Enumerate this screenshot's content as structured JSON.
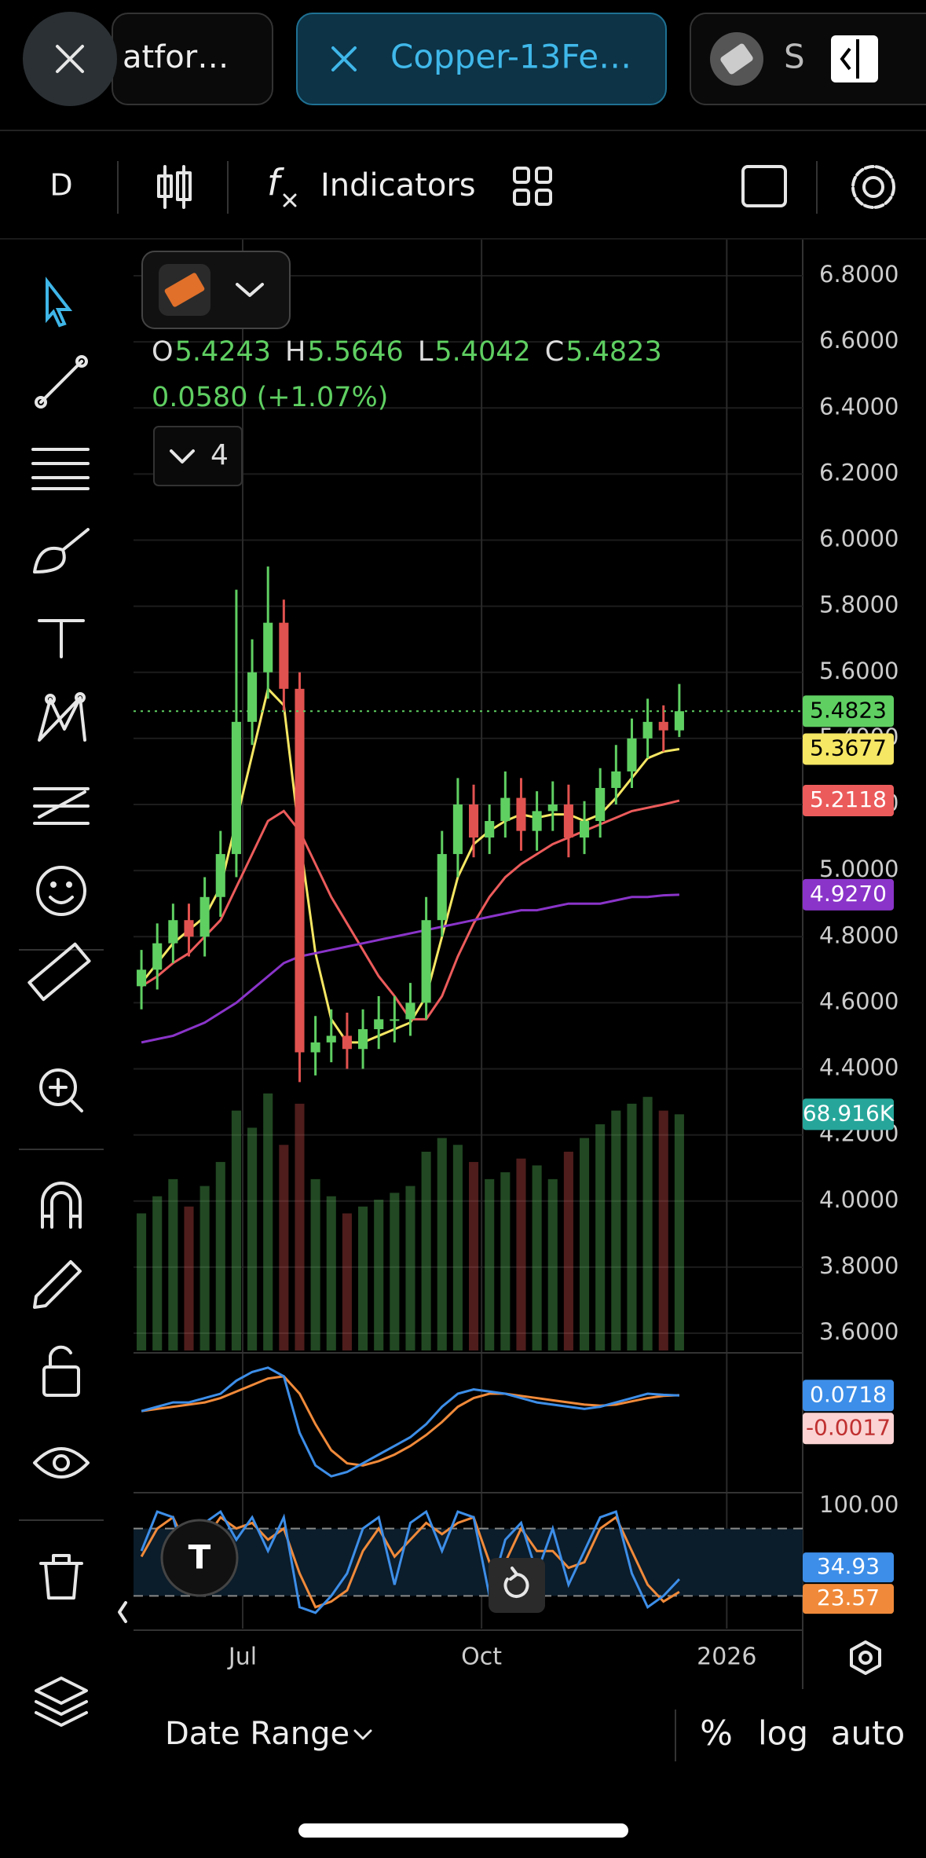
{
  "tabs": [
    "atfor…",
    "Copper-13Fe…",
    "S"
  ],
  "toolbar": {
    "interval": "D",
    "indicators": "Indicators"
  },
  "legend": {
    "o": "O",
    "h": "H",
    "l": "L",
    "c": "C",
    "change": "0.0580 (+1.07%)",
    "count": 4
  },
  "footer": {
    "date_range": "Date Range",
    "percent": "%",
    "log": "log",
    "auto": "auto"
  },
  "chart_data": {
    "type": "candlestick",
    "up_color": "#5fcf62",
    "down_color": "#e0524f",
    "xlim": [
      -0.5,
      41.8
    ],
    "xticks": [
      {
        "value": 6.4,
        "label": "Jul"
      },
      {
        "value": 21.5,
        "label": "Oct"
      },
      {
        "value": 37,
        "label": "2026"
      }
    ],
    "ylim": [
      3.6,
      6.8
    ],
    "yticks": [
      {
        "value": 6.8,
        "label": "6.8000"
      },
      {
        "value": 6.6,
        "label": "6.6000"
      },
      {
        "value": 6.4,
        "label": "6.4000"
      },
      {
        "value": 6.2,
        "label": "6.2000"
      },
      {
        "value": 6.0,
        "label": "6.0000"
      },
      {
        "value": 5.8,
        "label": "5.8000"
      },
      {
        "value": 5.6,
        "label": "5.6000"
      },
      {
        "value": 5.4,
        "label": "5.4000"
      },
      {
        "value": 5.2,
        "label": "5.2000"
      },
      {
        "value": 5.0,
        "label": "5.0000"
      },
      {
        "value": 4.8,
        "label": "4.8000"
      },
      {
        "value": 4.6,
        "label": "4.6000"
      },
      {
        "value": 4.4,
        "label": "4.4000"
      },
      {
        "value": 4.2,
        "label": "4.2000"
      },
      {
        "value": 4.0,
        "label": "4.0000"
      },
      {
        "value": 3.8,
        "label": "3.8000"
      },
      {
        "value": 3.6,
        "label": "3.6000"
      }
    ],
    "grid": true,
    "candles": {
      "open": [
        4.65,
        4.7,
        4.78,
        4.85,
        4.8,
        4.92,
        5.05,
        5.45,
        5.6,
        5.75,
        5.55,
        4.45,
        4.48,
        4.5,
        4.46,
        4.52,
        4.55,
        4.55,
        4.6,
        4.85,
        5.05,
        5.2,
        5.1,
        5.15,
        5.22,
        5.12,
        5.18,
        5.2,
        5.1,
        5.15,
        5.25,
        5.3,
        5.4,
        5.45,
        5.4243
      ],
      "high": [
        4.76,
        4.84,
        4.9,
        4.9,
        4.98,
        5.12,
        5.85,
        5.7,
        5.92,
        5.82,
        5.6,
        4.56,
        4.58,
        4.57,
        4.58,
        4.62,
        4.62,
        4.66,
        4.92,
        5.12,
        5.28,
        5.26,
        5.2,
        5.3,
        5.28,
        5.24,
        5.27,
        5.26,
        5.21,
        5.31,
        5.38,
        5.46,
        5.52,
        5.5,
        5.5646
      ],
      "low": [
        4.58,
        4.64,
        4.72,
        4.74,
        4.74,
        4.86,
        4.98,
        5.38,
        5.52,
        5.48,
        4.36,
        4.38,
        4.42,
        4.4,
        4.4,
        4.46,
        4.48,
        4.5,
        4.55,
        4.8,
        4.98,
        5.04,
        5.05,
        5.1,
        5.06,
        5.06,
        5.12,
        5.04,
        5.05,
        5.1,
        5.2,
        5.25,
        5.34,
        5.36,
        5.4042
      ],
      "close": [
        4.7,
        4.78,
        4.85,
        4.8,
        4.92,
        5.05,
        5.45,
        5.6,
        5.75,
        5.55,
        4.45,
        4.48,
        4.5,
        4.46,
        4.52,
        4.55,
        4.55,
        4.6,
        4.85,
        5.05,
        5.2,
        5.1,
        5.15,
        5.22,
        5.12,
        5.18,
        5.2,
        5.1,
        5.15,
        5.25,
        5.3,
        5.4,
        5.45,
        5.4243,
        5.4823
      ],
      "last_label": "5.4823"
    },
    "series": [
      {
        "color": "#f5e663",
        "values": [
          4.66,
          4.72,
          4.78,
          4.82,
          4.86,
          4.95,
          5.15,
          5.35,
          5.55,
          5.5,
          5.1,
          4.75,
          4.55,
          4.48,
          4.48,
          4.5,
          4.52,
          4.54,
          4.62,
          4.8,
          4.98,
          5.08,
          5.12,
          5.15,
          5.17,
          5.16,
          5.17,
          5.17,
          5.15,
          5.17,
          5.22,
          5.28,
          5.34,
          5.36,
          5.3677
        ],
        "last_label": "5.3677"
      },
      {
        "color": "#ec5b5b",
        "values": [
          4.65,
          4.68,
          4.72,
          4.75,
          4.8,
          4.85,
          4.95,
          5.05,
          5.15,
          5.18,
          5.12,
          5.02,
          4.92,
          4.84,
          4.76,
          4.68,
          4.62,
          4.55,
          4.55,
          4.62,
          4.74,
          4.84,
          4.92,
          4.98,
          5.02,
          5.05,
          5.08,
          5.1,
          5.12,
          5.14,
          5.16,
          5.18,
          5.19,
          5.2,
          5.2118
        ],
        "last_label": "5.2118"
      },
      {
        "color": "#8a34c9",
        "values": [
          4.48,
          4.49,
          4.5,
          4.52,
          4.54,
          4.57,
          4.6,
          4.64,
          4.68,
          4.72,
          4.74,
          4.75,
          4.76,
          4.77,
          4.78,
          4.79,
          4.8,
          4.81,
          4.82,
          4.83,
          4.84,
          4.85,
          4.86,
          4.87,
          4.88,
          4.88,
          4.89,
          4.9,
          4.9,
          4.9,
          4.91,
          4.92,
          4.92,
          4.925,
          4.927
        ],
        "last_label": "4.9270"
      }
    ],
    "volume": {
      "color": "#26a69a",
      "lim": [
        0,
        80
      ],
      "values": [
        40,
        45,
        50,
        42,
        48,
        55,
        70,
        65,
        75,
        60,
        72,
        50,
        45,
        40,
        42,
        44,
        46,
        48,
        58,
        62,
        60,
        55,
        50,
        52,
        56,
        54,
        50,
        58,
        62,
        66,
        70,
        72,
        74,
        70,
        68.916
      ],
      "last_label": "68.916K"
    },
    "macd": {
      "lim": [
        -0.35,
        0.25
      ],
      "macd_color": "#3d8ee8",
      "signal_color": "#f08a3a",
      "macd": [
        0.0,
        0.02,
        0.04,
        0.04,
        0.06,
        0.08,
        0.14,
        0.18,
        0.2,
        0.16,
        -0.1,
        -0.25,
        -0.3,
        -0.28,
        -0.24,
        -0.2,
        -0.16,
        -0.12,
        -0.06,
        0.02,
        0.08,
        0.1,
        0.09,
        0.08,
        0.06,
        0.04,
        0.03,
        0.02,
        0.01,
        0.02,
        0.04,
        0.06,
        0.08,
        0.075,
        0.0718
      ],
      "signal": [
        0.0,
        0.01,
        0.02,
        0.03,
        0.04,
        0.06,
        0.09,
        0.12,
        0.15,
        0.16,
        0.08,
        -0.06,
        -0.18,
        -0.24,
        -0.25,
        -0.23,
        -0.2,
        -0.16,
        -0.11,
        -0.05,
        0.02,
        0.06,
        0.08,
        0.08,
        0.07,
        0.06,
        0.05,
        0.04,
        0.03,
        0.025,
        0.03,
        0.045,
        0.06,
        0.07,
        0.0735
      ],
      "hist_last": -0.0017
    },
    "stoch": {
      "lim": [
        0,
        100
      ],
      "yticks": [
        {
          "value": 100,
          "label": "100.00"
        }
      ],
      "bands": [
        80,
        20
      ],
      "k_color": "#3d8ee8",
      "d_color": "#f08a3a",
      "k": [
        60,
        95,
        90,
        40,
        85,
        95,
        70,
        90,
        60,
        90,
        10,
        5,
        20,
        40,
        80,
        90,
        30,
        85,
        95,
        60,
        95,
        90,
        20,
        70,
        85,
        40,
        80,
        30,
        60,
        90,
        95,
        40,
        10,
        20,
        34.93
      ],
      "d": [
        55,
        80,
        90,
        60,
        70,
        90,
        80,
        85,
        70,
        80,
        40,
        10,
        15,
        25,
        60,
        80,
        55,
        70,
        85,
        75,
        85,
        90,
        50,
        50,
        80,
        60,
        60,
        45,
        50,
        80,
        90,
        60,
        30,
        15,
        23.57
      ]
    }
  }
}
